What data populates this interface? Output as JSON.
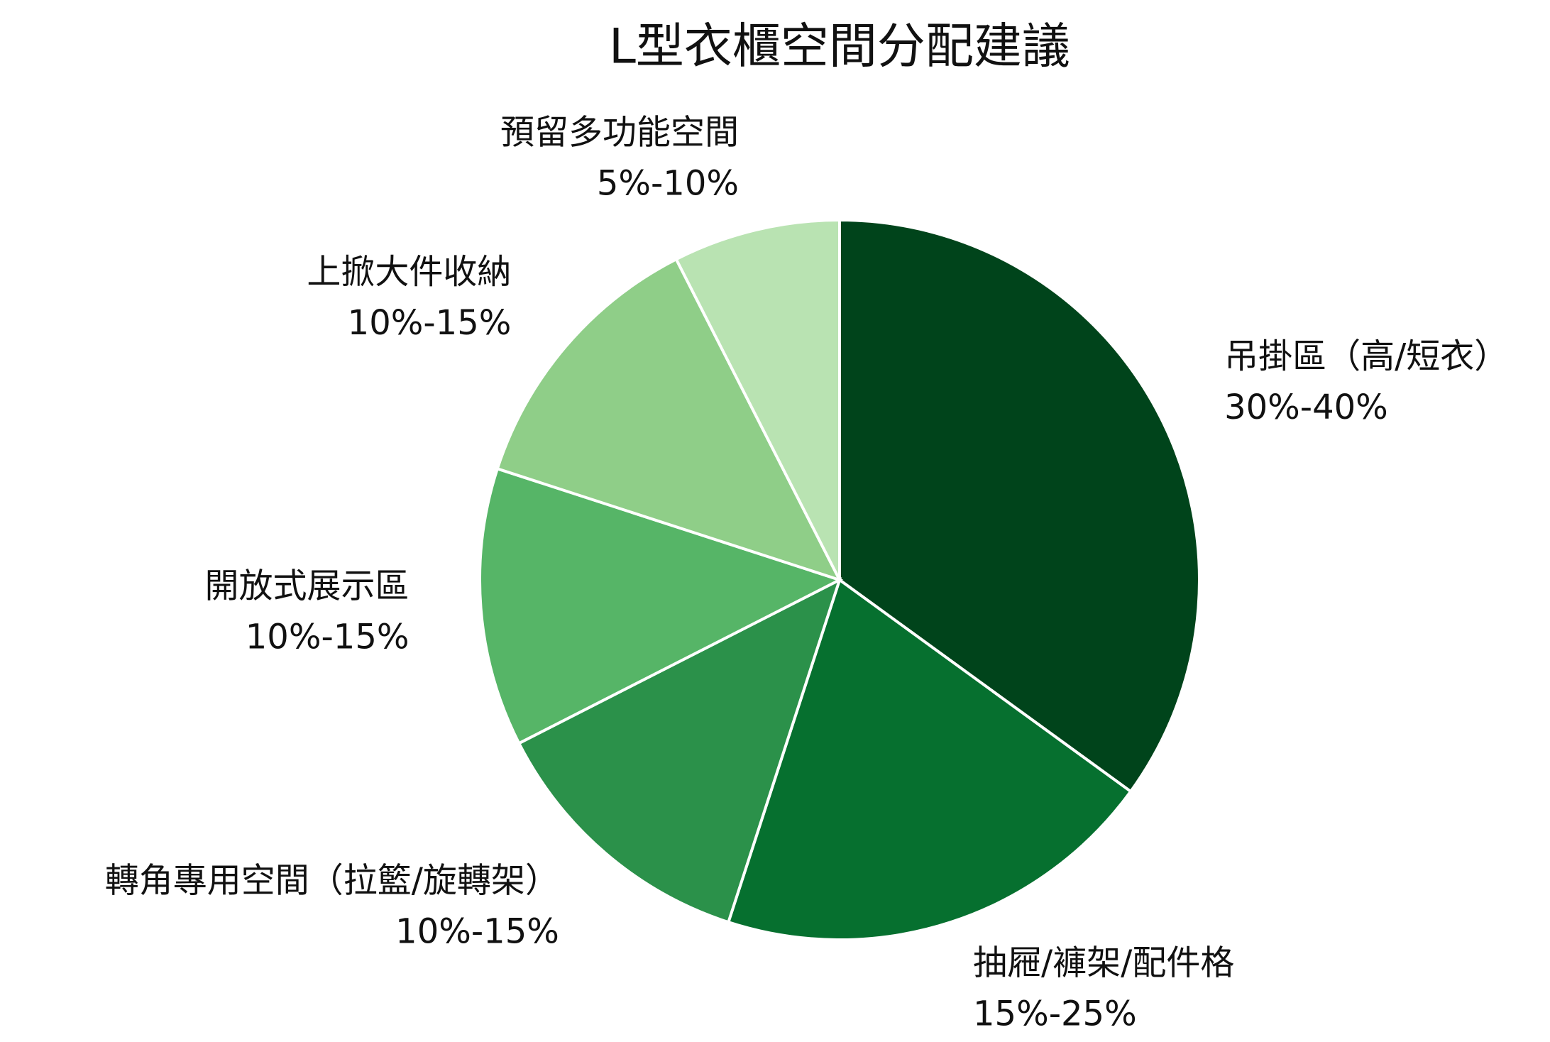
{
  "chart_data": {
    "type": "pie",
    "title": "L型衣櫃空間分配建議",
    "categories": [
      "吊掛區（高/短衣）",
      "抽屜/褲架/配件格",
      "轉角專用空間（拉籃/旋轉架）",
      "開放式展示區",
      "上掀大件收納",
      "預留多功能空間"
    ],
    "ranges": [
      "30%-40%",
      "15%-25%",
      "10%-15%",
      "10%-15%",
      "10%-15%",
      "5%-10%"
    ],
    "values": [
      35,
      20,
      12.5,
      12.5,
      12.5,
      7.5
    ],
    "colors": [
      "#00441b",
      "#06702f",
      "#2b914a",
      "#56b567",
      "#8fce88",
      "#b9e3b2"
    ]
  }
}
